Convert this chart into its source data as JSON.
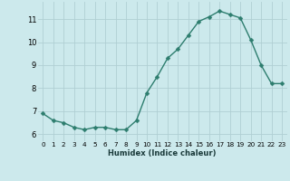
{
  "x": [
    0,
    1,
    2,
    3,
    4,
    5,
    6,
    7,
    8,
    9,
    10,
    11,
    12,
    13,
    14,
    15,
    16,
    17,
    18,
    19,
    20,
    21,
    22,
    23
  ],
  "y": [
    6.9,
    6.6,
    6.5,
    6.3,
    6.2,
    6.3,
    6.3,
    6.2,
    6.2,
    6.6,
    7.8,
    8.5,
    9.3,
    9.7,
    10.3,
    10.9,
    11.1,
    11.35,
    11.2,
    11.05,
    10.1,
    9.0,
    8.2,
    8.2
  ],
  "xlabel": "Humidex (Indice chaleur)",
  "xlim": [
    -0.5,
    23.5
  ],
  "ylim": [
    5.7,
    11.75
  ],
  "yticks": [
    6,
    7,
    8,
    9,
    10,
    11
  ],
  "xticks": [
    0,
    1,
    2,
    3,
    4,
    5,
    6,
    7,
    8,
    9,
    10,
    11,
    12,
    13,
    14,
    15,
    16,
    17,
    18,
    19,
    20,
    21,
    22,
    23
  ],
  "line_color": "#2d7d6e",
  "marker_color": "#2d7d6e",
  "bg_color": "#cce9ec",
  "grid_color": "#b0cfd3",
  "marker_size": 2.5,
  "line_width": 1.0,
  "xlabel_fontsize": 6.0,
  "tick_fontsize_x": 5.2,
  "tick_fontsize_y": 6.0
}
